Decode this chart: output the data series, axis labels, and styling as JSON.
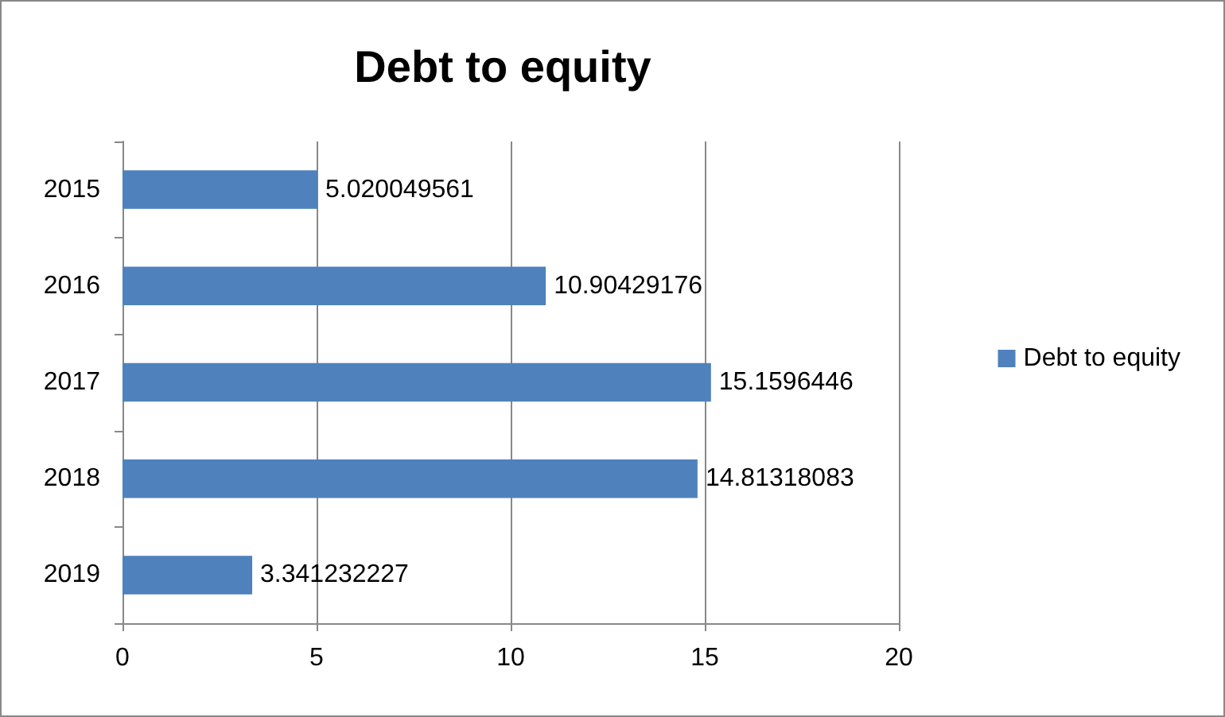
{
  "chart_data": {
    "type": "bar",
    "title": "Debt to equity",
    "orientation": "horizontal",
    "categories": [
      "2015",
      "2016",
      "2017",
      "2018",
      "2019"
    ],
    "series": [
      {
        "name": "Debt to equity",
        "color": "#4f81bd",
        "values": [
          5.020049561,
          10.90429176,
          15.1596446,
          14.81318083,
          3.341232227
        ]
      }
    ],
    "xlim": [
      0,
      20
    ],
    "xticks": [
      0,
      5,
      10,
      15,
      20
    ],
    "grid": "x",
    "legend": "right",
    "data_labels": true
  }
}
